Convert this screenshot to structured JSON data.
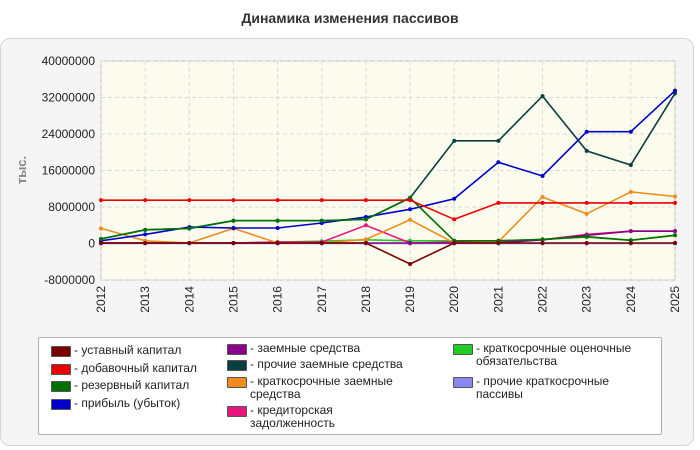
{
  "chart_data": {
    "type": "line",
    "title": "Динамика изменения пассивов",
    "ylabel": "тыс.",
    "xlabel": "",
    "ylim": [
      -8000000,
      40000000
    ],
    "yticks": [
      "-8000000",
      "0",
      "8000000",
      "16000000",
      "24000000",
      "32000000",
      "40000000"
    ],
    "x": [
      "2012",
      "2013",
      "2014",
      "2015",
      "2016",
      "2017",
      "2018",
      "2019",
      "2020",
      "2021",
      "2022",
      "2023",
      "2024",
      "2025"
    ],
    "grid": true,
    "legend_position": "bottom",
    "series": [
      {
        "name": "- уставный капитал",
        "color": "#7a0000",
        "values": [
          100000,
          100000,
          100000,
          100000,
          100000,
          100000,
          100000,
          -4500000,
          100000,
          100000,
          100000,
          100000,
          100000,
          100000
        ]
      },
      {
        "name": "- добавочный капитал",
        "color": "#ee0000",
        "values": [
          9500000,
          9500000,
          9500000,
          9500000,
          9500000,
          9500000,
          9500000,
          9500000,
          5300000,
          8900000,
          8900000,
          8900000,
          8900000,
          8900000
        ]
      },
      {
        "name": "- резервный капитал",
        "color": "#007000",
        "values": [
          1000000,
          3000000,
          3300000,
          5000000,
          5000000,
          5000000,
          5300000,
          10000000,
          600000,
          600000,
          900000,
          1500000,
          700000,
          1800000
        ]
      },
      {
        "name": "- прибыль (убыток)",
        "color": "#0000cc",
        "values": [
          600000,
          2000000,
          3600000,
          3400000,
          3400000,
          4500000,
          5800000,
          7500000,
          9800000,
          17800000,
          14800000,
          24500000,
          24500000,
          33500000
        ]
      },
      {
        "name": "- заемные средства",
        "color": "#8a008a",
        "values": [
          100000,
          100000,
          100000,
          100000,
          100000,
          100000,
          100000,
          100000,
          100000,
          100000,
          800000,
          1800000,
          2700000,
          2700000
        ]
      },
      {
        "name": "- прочие заемные средства",
        "color": "#0a3f3f",
        "values": [
          1000000,
          3000000,
          3300000,
          5000000,
          5000000,
          5000000,
          5300000,
          10000000,
          22500000,
          22500000,
          32300000,
          20300000,
          17200000,
          32900000
        ]
      },
      {
        "name": "- краткосрочные заемные средства",
        "color": "#f08c1e",
        "values": [
          3300000,
          600000,
          100000,
          3300000,
          100000,
          100000,
          900000,
          5200000,
          100000,
          400000,
          10200000,
          6500000,
          11300000,
          10300000
        ]
      },
      {
        "name": "- кредиторская задолженность",
        "color": "#e8157f",
        "values": [
          100000,
          100000,
          100000,
          100000,
          300000,
          300000,
          4000000,
          100000,
          300000,
          300000,
          800000,
          2000000,
          2700000,
          2700000
        ]
      },
      {
        "name": "- краткосрочные оценочные обязательства",
        "color": "#22cc22",
        "values": [
          100000,
          100000,
          100000,
          100000,
          300000,
          500000,
          800000,
          600000,
          600000,
          600000,
          900000,
          1400000,
          700000,
          1800000
        ]
      },
      {
        "name": "- прочие краткосрочные пассивы",
        "color": "#8888ee",
        "values": [
          0,
          0,
          0,
          0,
          0,
          0,
          0,
          0,
          0,
          0,
          0,
          0,
          0,
          0
        ]
      }
    ]
  }
}
